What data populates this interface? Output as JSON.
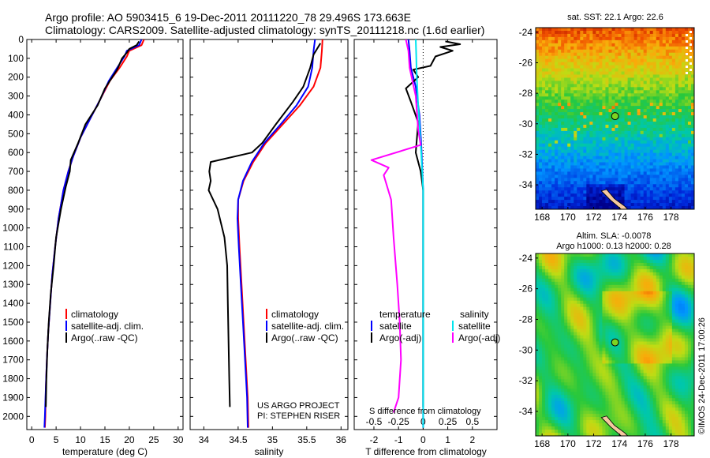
{
  "title": {
    "line1": "Argo profile: AO 5903415_6 19-Dec-2011 20111220_78 29.496S 173.663E",
    "line2": "Climatology: CARS2009. Satellite-adjusted climatology: synTS_20111218.nc (1.6d earlier)"
  },
  "colors": {
    "climatology": "#ff0000",
    "satellite": "#0000ff",
    "argo": "#000000",
    "sal_satellite": "#00e5ee",
    "sal_argo": "#ff00ff",
    "marker": "#7ed321"
  },
  "chart_data": [
    {
      "type": "line",
      "id": "temperature",
      "xlabel": "temperature (deg C)",
      "xlim": [
        -1,
        31
      ],
      "ylim": [
        2070,
        0
      ],
      "y_reversed": true,
      "xticks": [
        0,
        5,
        10,
        15,
        20,
        25,
        30
      ],
      "yticks": [
        0,
        100,
        200,
        300,
        400,
        500,
        600,
        700,
        800,
        900,
        1000,
        1100,
        1200,
        1300,
        1400,
        1500,
        1600,
        1700,
        1800,
        1900,
        2000
      ],
      "legend": [
        "climatology",
        "satellite-adj. clim.",
        "Argo(..raw -QC)"
      ],
      "series": [
        {
          "name": "climatology",
          "color": "red",
          "points": [
            [
              23,
              0
            ],
            [
              22.5,
              30
            ],
            [
              20,
              60
            ],
            [
              19.5,
              90
            ],
            [
              18,
              150
            ],
            [
              16,
              220
            ],
            [
              14,
              320
            ],
            [
              12,
              420
            ],
            [
              10,
              520
            ],
            [
              8.5,
              620
            ],
            [
              7.5,
              700
            ],
            [
              6.5,
              800
            ],
            [
              5.5,
              950
            ],
            [
              4.8,
              1100
            ],
            [
              4.2,
              1250
            ],
            [
              3.8,
              1400
            ],
            [
              3.4,
              1550
            ],
            [
              3.1,
              1700
            ],
            [
              2.9,
              1850
            ],
            [
              2.8,
              2000
            ],
            [
              2.7,
              2060
            ]
          ]
        },
        {
          "name": "satellite-adj. clim.",
          "color": "blue",
          "points": [
            [
              22.5,
              0
            ],
            [
              22,
              30
            ],
            [
              19.5,
              60
            ],
            [
              19,
              90
            ],
            [
              17.5,
              150
            ],
            [
              15.8,
              220
            ],
            [
              14,
              320
            ],
            [
              12,
              420
            ],
            [
              10,
              520
            ],
            [
              8.5,
              620
            ],
            [
              7.5,
              700
            ],
            [
              6.5,
              800
            ],
            [
              5.5,
              950
            ],
            [
              4.8,
              1100
            ],
            [
              4.2,
              1250
            ],
            [
              3.8,
              1400
            ],
            [
              3.4,
              1550
            ],
            [
              3.1,
              1700
            ],
            [
              2.9,
              1850
            ],
            [
              2.7,
              2000
            ],
            [
              2.6,
              2060
            ]
          ]
        },
        {
          "name": "Argo(..raw -QC)",
          "color": "black",
          "points": [
            [
              22,
              10
            ],
            [
              21.5,
              30
            ],
            [
              20,
              50
            ],
            [
              19.5,
              70
            ],
            [
              18.5,
              100
            ],
            [
              17.5,
              160
            ],
            [
              15,
              260
            ],
            [
              13.5,
              350
            ],
            [
              11,
              450
            ],
            [
              9.5,
              550
            ],
            [
              8,
              640
            ],
            [
              7.8,
              700
            ],
            [
              7,
              780
            ],
            [
              6,
              900
            ],
            [
              5,
              1050
            ],
            [
              4.5,
              1200
            ],
            [
              3.9,
              1350
            ],
            [
              3.5,
              1500
            ],
            [
              3.2,
              1650
            ],
            [
              3,
              1800
            ],
            [
              2.9,
              1950
            ]
          ]
        }
      ]
    },
    {
      "type": "line",
      "id": "salinity",
      "xlabel": "salinity",
      "xlim": [
        33.8,
        36.1
      ],
      "ylim": [
        2070,
        0
      ],
      "y_reversed": true,
      "xticks": [
        34,
        34.5,
        35,
        35.5,
        36
      ],
      "xticklabels": [
        "34",
        "34.5",
        "35",
        "35.5",
        "36"
      ],
      "legend": [
        "climatology",
        "satellite-adj. clim.",
        "Argo(..raw -QC)"
      ],
      "annotation": [
        "US ARGO PROJECT",
        "PI: STEPHEN RISER"
      ],
      "series": [
        {
          "name": "climatology",
          "color": "red",
          "points": [
            [
              35.73,
              0
            ],
            [
              35.72,
              60
            ],
            [
              35.7,
              150
            ],
            [
              35.6,
              250
            ],
            [
              35.4,
              350
            ],
            [
              35.15,
              450
            ],
            [
              34.9,
              550
            ],
            [
              34.72,
              650
            ],
            [
              34.58,
              750
            ],
            [
              34.5,
              850
            ],
            [
              34.5,
              950
            ],
            [
              34.52,
              1100
            ],
            [
              34.55,
              1300
            ],
            [
              34.58,
              1500
            ],
            [
              34.61,
              1700
            ],
            [
              34.64,
              1900
            ],
            [
              34.65,
              2060
            ]
          ]
        },
        {
          "name": "satellite-adj. clim.",
          "color": "blue",
          "points": [
            [
              35.62,
              0
            ],
            [
              35.6,
              60
            ],
            [
              35.58,
              150
            ],
            [
              35.52,
              250
            ],
            [
              35.35,
              350
            ],
            [
              35.12,
              450
            ],
            [
              34.88,
              550
            ],
            [
              34.7,
              650
            ],
            [
              34.57,
              750
            ],
            [
              34.5,
              850
            ],
            [
              34.49,
              950
            ],
            [
              34.51,
              1100
            ],
            [
              34.54,
              1300
            ],
            [
              34.57,
              1500
            ],
            [
              34.6,
              1700
            ],
            [
              34.63,
              1900
            ],
            [
              34.64,
              2060
            ]
          ]
        },
        {
          "name": "Argo(..raw -QC)",
          "color": "black",
          "points": [
            [
              35.7,
              20
            ],
            [
              35.6,
              80
            ],
            [
              35.55,
              150
            ],
            [
              35.45,
              250
            ],
            [
              35.3,
              330
            ],
            [
              35.05,
              450
            ],
            [
              34.85,
              550
            ],
            [
              34.7,
              600
            ],
            [
              34.1,
              650
            ],
            [
              34.08,
              700
            ],
            [
              34.1,
              750
            ],
            [
              34.07,
              800
            ],
            [
              34.2,
              900
            ],
            [
              34.3,
              1050
            ],
            [
              34.34,
              1200
            ],
            [
              34.35,
              1400
            ],
            [
              34.36,
              1600
            ],
            [
              34.37,
              1800
            ],
            [
              34.38,
              1950
            ]
          ]
        }
      ]
    },
    {
      "type": "line",
      "id": "differences",
      "xlabel": "T difference from climatology",
      "xlabel_top": "S difference from climatology",
      "xlim": [
        -2.8,
        3.0
      ],
      "ylim": [
        2070,
        0
      ],
      "y_reversed": true,
      "xticks": [
        -2,
        -1,
        0,
        1,
        2
      ],
      "s_ticklabels": [
        "-0.5",
        "-0.25",
        "0",
        "0.25",
        "0.5"
      ],
      "legend_left": [
        "temperature",
        "satellite",
        "Argo(-adj)"
      ],
      "legend_right": [
        "salinity",
        "satellite",
        "Argo(-adj)"
      ],
      "series": [
        {
          "name": "T satellite",
          "color": "blue",
          "points": [
            [
              -0.6,
              0
            ],
            [
              -0.55,
              60
            ],
            [
              -0.5,
              150
            ],
            [
              -0.3,
              250
            ],
            [
              -0.15,
              400
            ],
            [
              -0.08,
              550
            ],
            [
              0,
              800
            ],
            [
              0,
              1200
            ],
            [
              0,
              2060
            ]
          ]
        },
        {
          "name": "T Argo(-adj)",
          "color": "black",
          "points": [
            [
              0.9,
              10
            ],
            [
              1.5,
              25
            ],
            [
              0.7,
              40
            ],
            [
              1.2,
              60
            ],
            [
              0.5,
              90
            ],
            [
              0.3,
              140
            ],
            [
              -0.4,
              160
            ],
            [
              -0.2,
              200
            ],
            [
              -0.7,
              260
            ],
            [
              -0.5,
              330
            ],
            [
              -0.2,
              440
            ],
            [
              -0.3,
              600
            ],
            [
              -0.1,
              700
            ],
            [
              0,
              800
            ],
            [
              0,
              1200
            ],
            [
              0,
              1950
            ]
          ]
        },
        {
          "name": "S satellite",
          "color": "cyan",
          "points": [
            [
              -0.3,
              0
            ],
            [
              -0.28,
              80
            ],
            [
              -0.26,
              200
            ],
            [
              -0.2,
              350
            ],
            [
              -0.1,
              550
            ],
            [
              0,
              800
            ],
            [
              0,
              1200
            ],
            [
              0,
              2060
            ]
          ]
        },
        {
          "name": "S Argo(-adj)",
          "color": "magenta",
          "points": [
            [
              -0.7,
              0
            ],
            [
              -0.6,
              60
            ],
            [
              -0.55,
              150
            ],
            [
              -0.3,
              300
            ],
            [
              -0.2,
              480
            ],
            [
              -0.1,
              560
            ],
            [
              -2.1,
              640
            ],
            [
              -1.4,
              680
            ],
            [
              -1.6,
              720
            ],
            [
              -1.3,
              850
            ],
            [
              -1.2,
              1050
            ],
            [
              -1.05,
              1300
            ],
            [
              -0.95,
              1500
            ],
            [
              -0.9,
              1700
            ],
            [
              -1.0,
              1900
            ],
            [
              -1.2,
              1980
            ]
          ]
        }
      ]
    },
    {
      "type": "heatmap",
      "id": "sst-map",
      "title": "sat. SST: 22.1  Argo: 22.6",
      "xlim": [
        167.5,
        179.8
      ],
      "ylim": [
        -35.6,
        -23.7
      ],
      "xticks": [
        168,
        170,
        172,
        174,
        176,
        178
      ],
      "yticks": [
        -24,
        -26,
        -28,
        -30,
        -32,
        -34
      ],
      "marker": [
        173.66,
        -29.5
      ]
    },
    {
      "type": "heatmap",
      "id": "sla-map",
      "title_line1": "Altim. SLA: -0.0078",
      "title_line2": "Argo h1000: 0.13  h2000: 0.28",
      "xlim": [
        167.5,
        179.8
      ],
      "ylim": [
        -35.6,
        -23.7
      ],
      "xticks": [
        168,
        170,
        172,
        174,
        176,
        178
      ],
      "yticks": [
        -24,
        -26,
        -28,
        -30,
        -32,
        -34
      ],
      "marker": [
        173.66,
        -29.5
      ]
    }
  ],
  "credit": "©IMOS 24-Dec-2011 17:00:26"
}
